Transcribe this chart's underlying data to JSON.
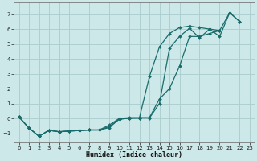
{
  "xlabel": "Humidex (Indice chaleur)",
  "background_color": "#cce8e8",
  "grid_color": "#aacccc",
  "line_color": "#1a6b6b",
  "xlim": [
    -0.5,
    23.5
  ],
  "ylim": [
    -1.6,
    7.8
  ],
  "xticks": [
    0,
    1,
    2,
    3,
    4,
    5,
    6,
    7,
    8,
    9,
    10,
    11,
    12,
    13,
    14,
    15,
    16,
    17,
    18,
    19,
    20,
    21,
    22,
    23
  ],
  "yticks": [
    -1,
    0,
    1,
    2,
    3,
    4,
    5,
    6,
    7
  ],
  "series": [
    {
      "x": [
        0,
        1,
        2,
        3,
        4,
        5,
        6,
        7,
        8,
        9,
        10,
        11,
        12,
        13,
        14,
        15,
        16,
        17,
        18,
        19,
        20,
        21,
        22
      ],
      "y": [
        0.1,
        -0.65,
        -1.2,
        -0.8,
        -0.9,
        -0.85,
        -0.82,
        -0.78,
        -0.78,
        -0.62,
        -0.05,
        0.0,
        0.02,
        0.02,
        1.0,
        4.7,
        5.5,
        6.05,
        5.4,
        6.0,
        5.5,
        7.1,
        6.5
      ]
    },
    {
      "x": [
        0,
        1,
        2,
        3,
        4,
        5,
        6,
        7,
        8,
        9,
        10,
        11,
        12,
        13,
        14,
        15,
        16,
        17,
        18,
        19,
        20
      ],
      "y": [
        0.1,
        -0.65,
        -1.2,
        -0.8,
        -0.9,
        -0.85,
        -0.82,
        -0.78,
        -0.78,
        -0.55,
        -0.05,
        0.02,
        0.02,
        2.8,
        4.8,
        5.7,
        6.1,
        6.2,
        6.1,
        6.0,
        5.9
      ]
    },
    {
      "x": [
        0,
        1,
        2,
        3,
        4,
        5,
        6,
        7,
        8,
        9,
        10,
        11,
        12,
        13,
        14,
        15,
        16,
        17,
        18,
        19,
        20,
        21,
        22
      ],
      "y": [
        0.1,
        -0.65,
        -1.2,
        -0.8,
        -0.9,
        -0.85,
        -0.82,
        -0.78,
        -0.78,
        -0.45,
        0.0,
        0.05,
        0.05,
        0.05,
        1.3,
        2.0,
        3.5,
        5.5,
        5.5,
        5.7,
        5.9,
        7.1,
        6.5
      ]
    }
  ]
}
